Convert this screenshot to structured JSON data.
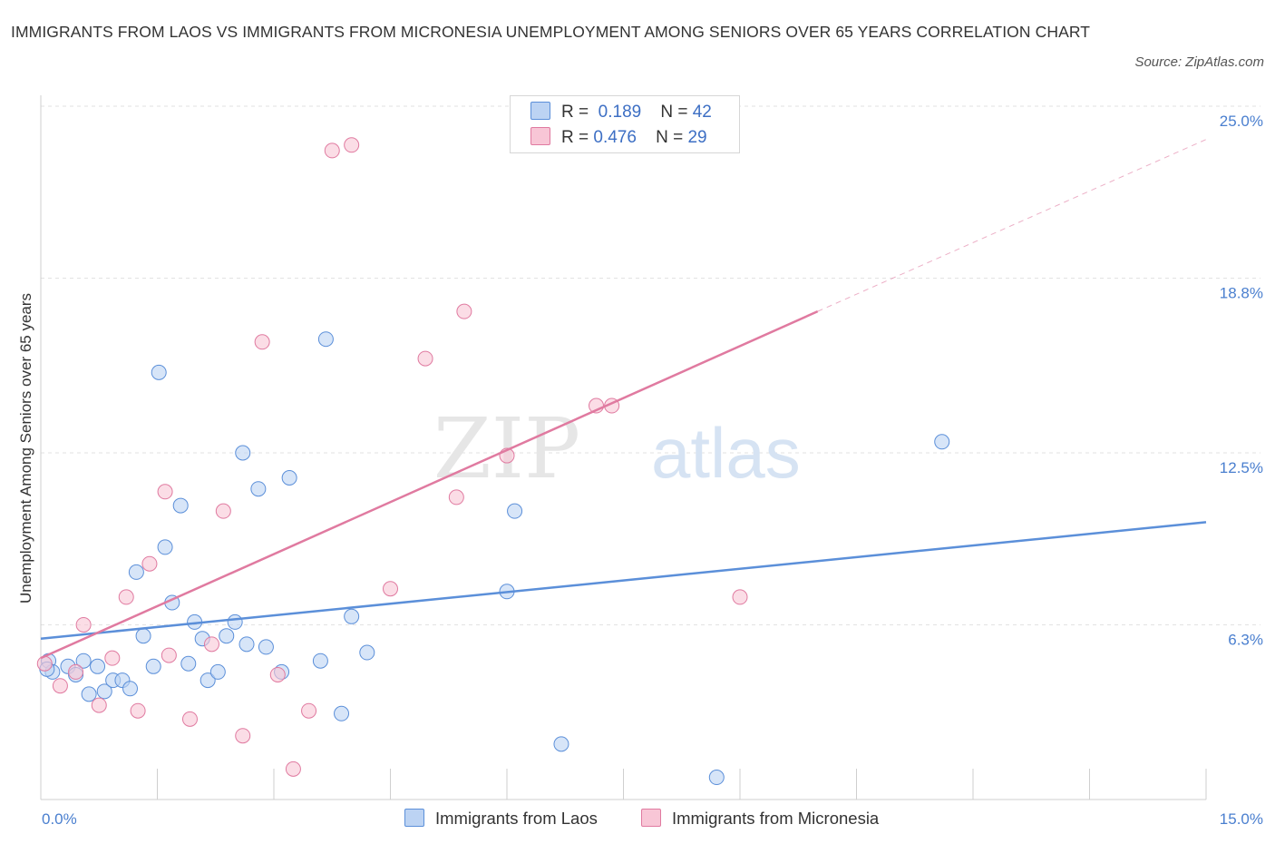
{
  "chart_data": {
    "type": "scatter",
    "title": "IMMIGRANTS FROM LAOS VS IMMIGRANTS FROM MICRONESIA UNEMPLOYMENT AMONG SENIORS OVER 65 YEARS CORRELATION CHART",
    "source": "Source: ZipAtlas.com",
    "ylabel": "Unemployment Among Seniors over 65 years",
    "xlim": [
      0,
      15
    ],
    "ylim": [
      0,
      25
    ],
    "x_tick_labels": [
      "0.0%",
      "15.0%"
    ],
    "y_ticks": [
      6.3,
      12.5,
      18.8,
      25.0
    ],
    "y_tick_labels": [
      "6.3%",
      "12.5%",
      "18.8%",
      "25.0%"
    ],
    "grid": true,
    "watermark": "ZIPatlas",
    "legend": {
      "position": "top-center",
      "rows": [
        {
          "r_label": "R =",
          "r_value": "0.189",
          "n_label": "N =",
          "n_value": "42"
        },
        {
          "r_label": "R =",
          "r_value": "0.476",
          "n_label": "N =",
          "n_value": "29"
        }
      ]
    },
    "series": [
      {
        "name": "Immigrants from Laos",
        "color": "#5b8fd9",
        "fill": "#bcd3f3",
        "trend": {
          "x": [
            0,
            15
          ],
          "y": [
            5.8,
            10.0
          ]
        },
        "points": [
          [
            0.1,
            5.0
          ],
          [
            0.15,
            4.6
          ],
          [
            0.35,
            4.8
          ],
          [
            0.45,
            4.5
          ],
          [
            0.55,
            5.0
          ],
          [
            0.62,
            3.8
          ],
          [
            0.73,
            4.8
          ],
          [
            0.82,
            3.9
          ],
          [
            0.93,
            4.3
          ],
          [
            1.05,
            4.3
          ],
          [
            1.15,
            4.0
          ],
          [
            1.23,
            8.2
          ],
          [
            1.32,
            5.9
          ],
          [
            1.45,
            4.8
          ],
          [
            1.52,
            15.4
          ],
          [
            1.6,
            9.1
          ],
          [
            1.69,
            7.1
          ],
          [
            1.8,
            10.6
          ],
          [
            1.9,
            4.9
          ],
          [
            1.98,
            6.4
          ],
          [
            2.08,
            5.8
          ],
          [
            2.15,
            4.3
          ],
          [
            2.28,
            4.6
          ],
          [
            2.39,
            5.9
          ],
          [
            2.5,
            6.4
          ],
          [
            2.6,
            12.5
          ],
          [
            2.65,
            5.6
          ],
          [
            2.8,
            11.2
          ],
          [
            2.9,
            5.5
          ],
          [
            3.1,
            4.6
          ],
          [
            3.2,
            11.6
          ],
          [
            3.6,
            5.0
          ],
          [
            3.67,
            16.6
          ],
          [
            3.87,
            3.1
          ],
          [
            4.0,
            6.6
          ],
          [
            4.2,
            5.3
          ],
          [
            6.0,
            7.5
          ],
          [
            6.1,
            10.4
          ],
          [
            6.7,
            2.0
          ],
          [
            8.7,
            0.8
          ],
          [
            11.6,
            12.9
          ],
          [
            0.08,
            4.7
          ]
        ]
      },
      {
        "name": "Immigrants from Micronesia",
        "color": "#e07aa0",
        "fill": "#f8c6d6",
        "trend": {
          "x": [
            0,
            10.0
          ],
          "y": [
            5.1,
            17.6
          ]
        },
        "trend_dashed": {
          "x": [
            10.0,
            15
          ],
          "y": [
            17.6,
            23.8
          ]
        },
        "points": [
          [
            0.05,
            4.9
          ],
          [
            0.25,
            4.1
          ],
          [
            0.55,
            6.3
          ],
          [
            0.45,
            4.6
          ],
          [
            0.75,
            3.4
          ],
          [
            0.92,
            5.1
          ],
          [
            1.1,
            7.3
          ],
          [
            1.25,
            3.2
          ],
          [
            1.4,
            8.5
          ],
          [
            1.6,
            11.1
          ],
          [
            1.65,
            5.2
          ],
          [
            1.92,
            2.9
          ],
          [
            2.2,
            5.6
          ],
          [
            2.35,
            10.4
          ],
          [
            2.6,
            2.3
          ],
          [
            2.85,
            16.5
          ],
          [
            3.05,
            4.5
          ],
          [
            3.25,
            1.1
          ],
          [
            3.45,
            3.2
          ],
          [
            3.75,
            23.4
          ],
          [
            4.0,
            23.6
          ],
          [
            4.5,
            7.6
          ],
          [
            4.95,
            15.9
          ],
          [
            5.35,
            10.9
          ],
          [
            5.45,
            17.6
          ],
          [
            6.0,
            12.4
          ],
          [
            7.15,
            14.2
          ],
          [
            7.35,
            14.2
          ],
          [
            9.0,
            7.3
          ]
        ]
      }
    ]
  }
}
